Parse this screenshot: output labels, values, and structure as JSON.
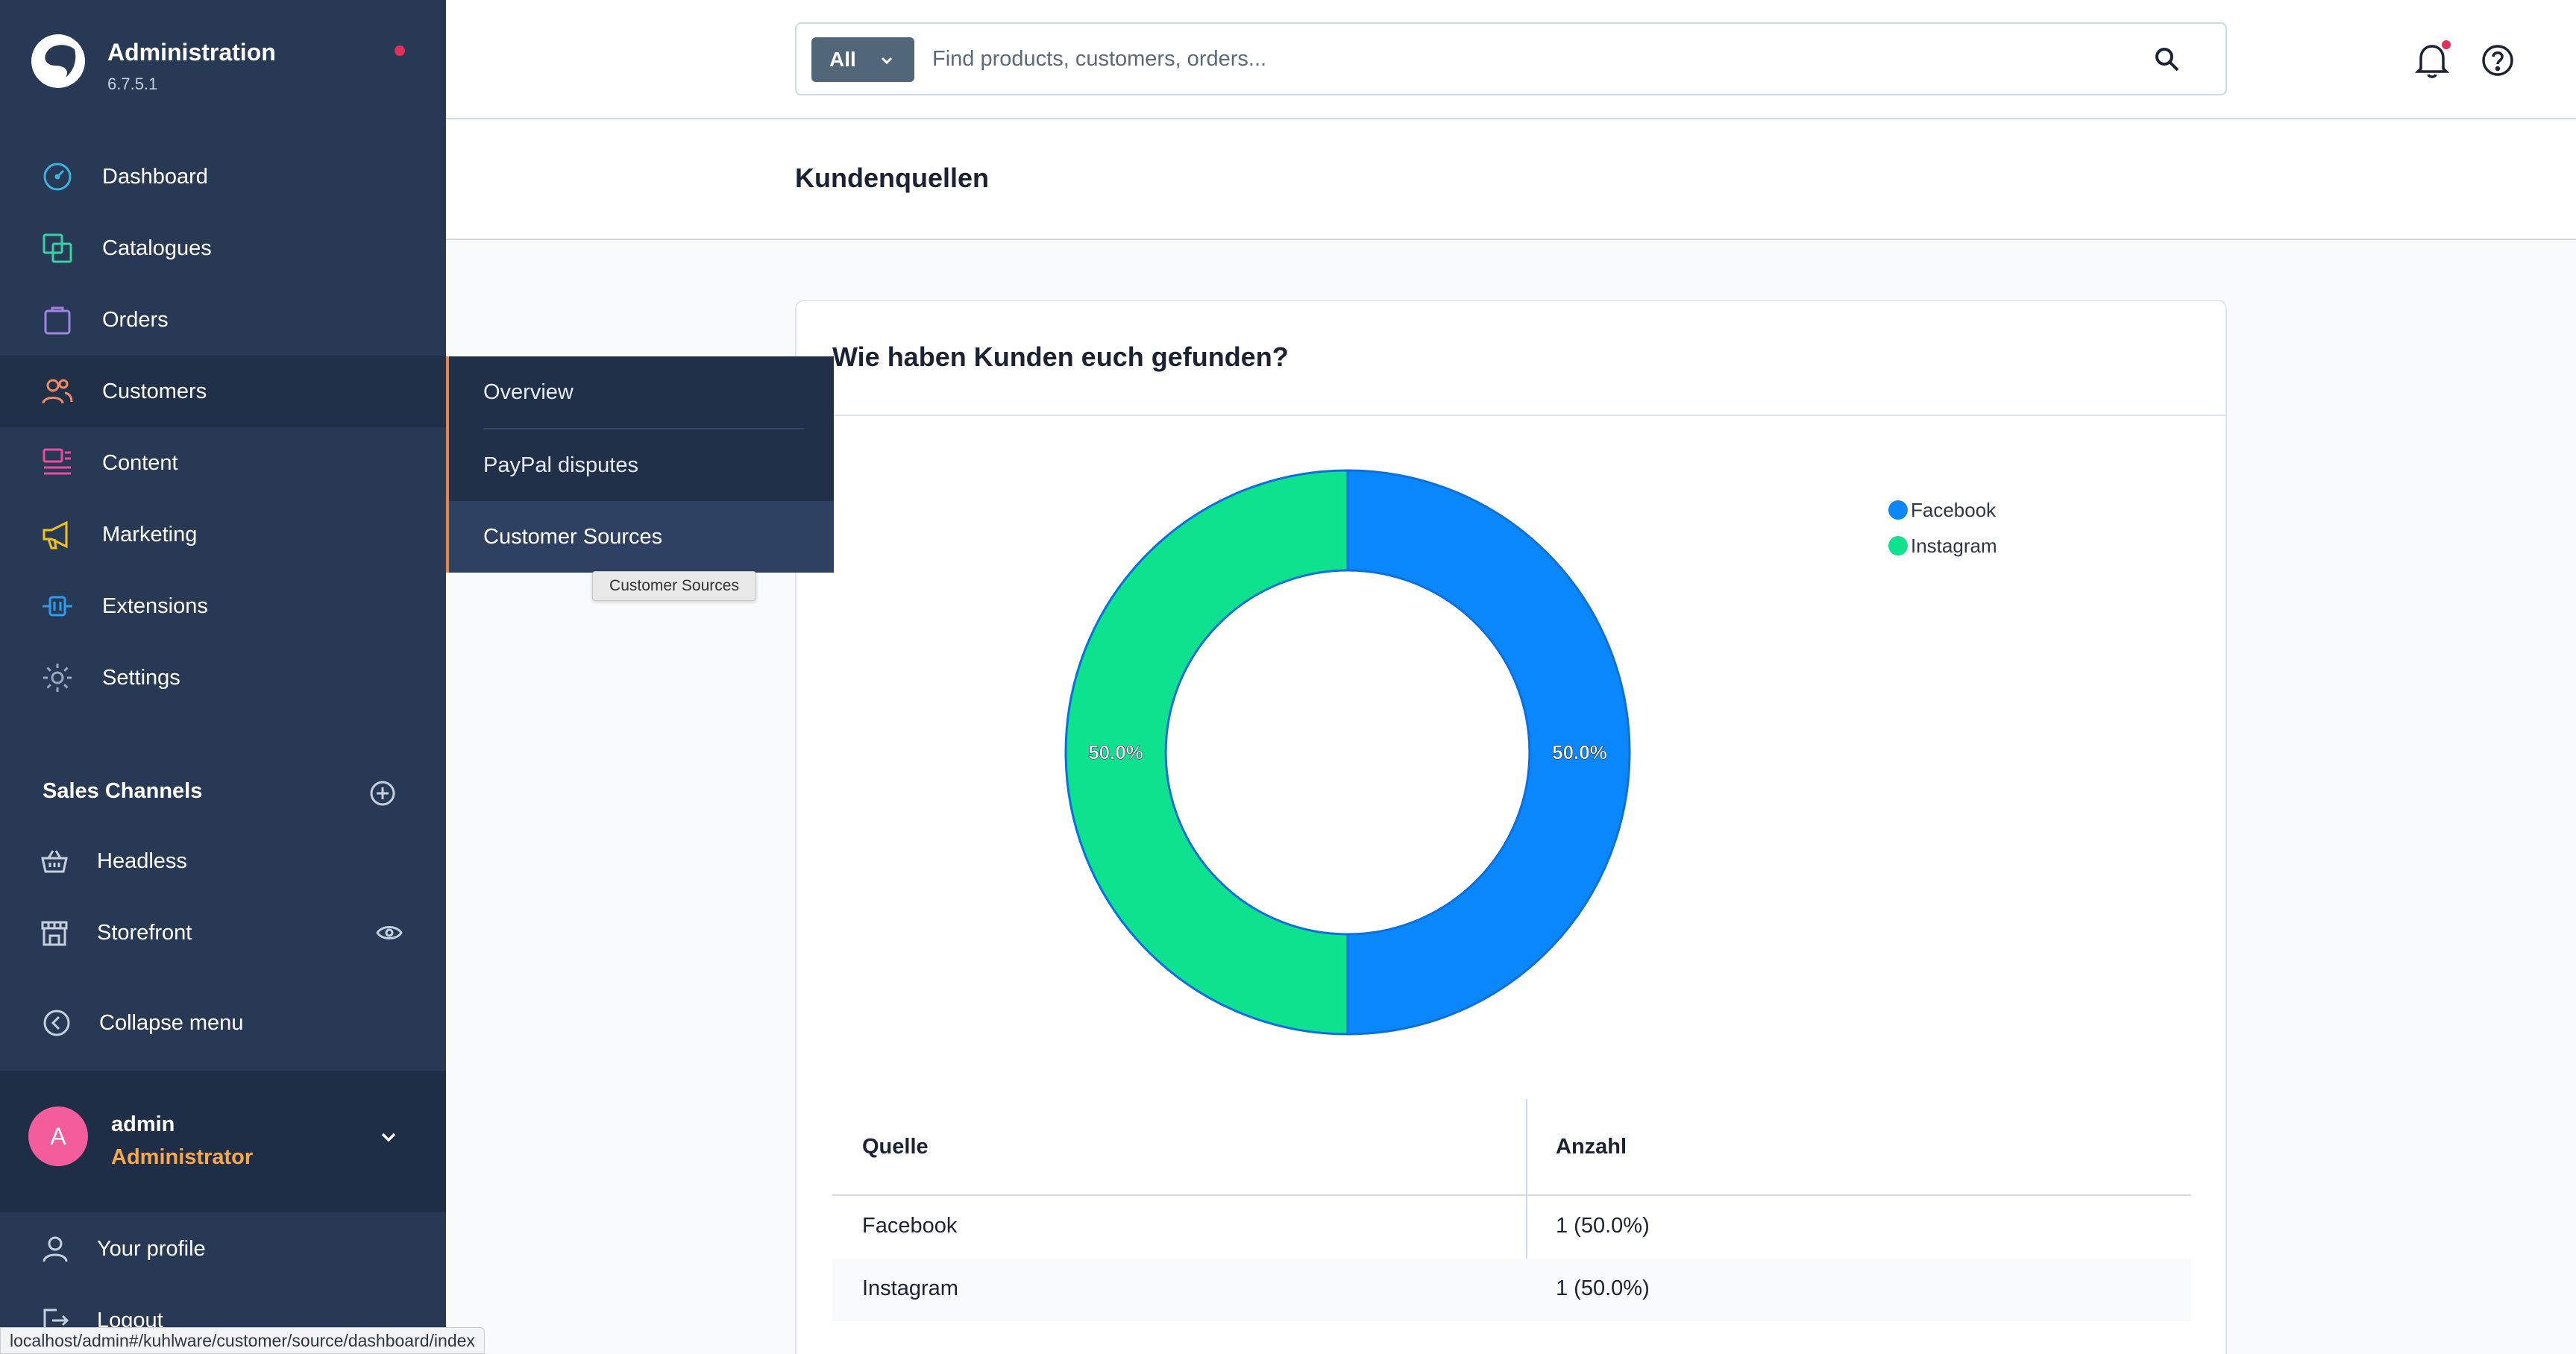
{
  "brand": {
    "title": "Administration",
    "version": "6.7.5.1"
  },
  "nav": [
    {
      "label": "Dashboard",
      "icon": "gauge-icon",
      "color": "#3fb3e0"
    },
    {
      "label": "Catalogues",
      "icon": "catalogue-icon",
      "color": "#37d4a2"
    },
    {
      "label": "Orders",
      "icon": "shopping-bag-icon",
      "color": "#a282e6"
    },
    {
      "label": "Customers",
      "icon": "users-icon",
      "color": "#f08a63"
    },
    {
      "label": "Content",
      "icon": "content-icon",
      "color": "#ee4b9c"
    },
    {
      "label": "Marketing",
      "icon": "megaphone-icon",
      "color": "#f2c21b"
    },
    {
      "label": "Extensions",
      "icon": "plug-icon",
      "color": "#2d9eef"
    },
    {
      "label": "Settings",
      "icon": "gear-icon",
      "color": "#9aa8b9"
    }
  ],
  "sales_channels": {
    "title": "Sales Channels",
    "items": [
      {
        "label": "Headless",
        "icon": "basket-icon"
      },
      {
        "label": "Storefront",
        "icon": "storefront-icon"
      }
    ]
  },
  "collapse_label": "Collapse menu",
  "user": {
    "initial": "A",
    "name": "admin",
    "role": "Administrator"
  },
  "lower_menu": {
    "profile": "Your profile",
    "logout": "Logout"
  },
  "search": {
    "type_label": "All",
    "placeholder": "Find products, customers, orders..."
  },
  "page": {
    "title": "Kundenquellen"
  },
  "card": {
    "title": "Wie haben Kunden euch gefunden?"
  },
  "flyout": {
    "items": [
      "Overview",
      "PayPal disputes",
      "Customer Sources"
    ],
    "active": "Customer Sources",
    "tooltip": "Customer Sources"
  },
  "chart_data": {
    "type": "pie",
    "variant": "doughnut",
    "categories": [
      "Facebook",
      "Instagram"
    ],
    "values": [
      1,
      1
    ],
    "percent_labels": [
      "50.0%",
      "50.0%"
    ],
    "colors": [
      "#0a88fb",
      "#0ee28f"
    ],
    "legend": "top-right"
  },
  "table": {
    "headers": [
      "Quelle",
      "Anzahl"
    ],
    "rows": [
      [
        "Facebook",
        "1 (50.0%)"
      ],
      [
        "Instagram",
        "1 (50.0%)"
      ]
    ]
  },
  "status_url": "localhost/admin#/kuhlware/customer/source/dashboard/index"
}
